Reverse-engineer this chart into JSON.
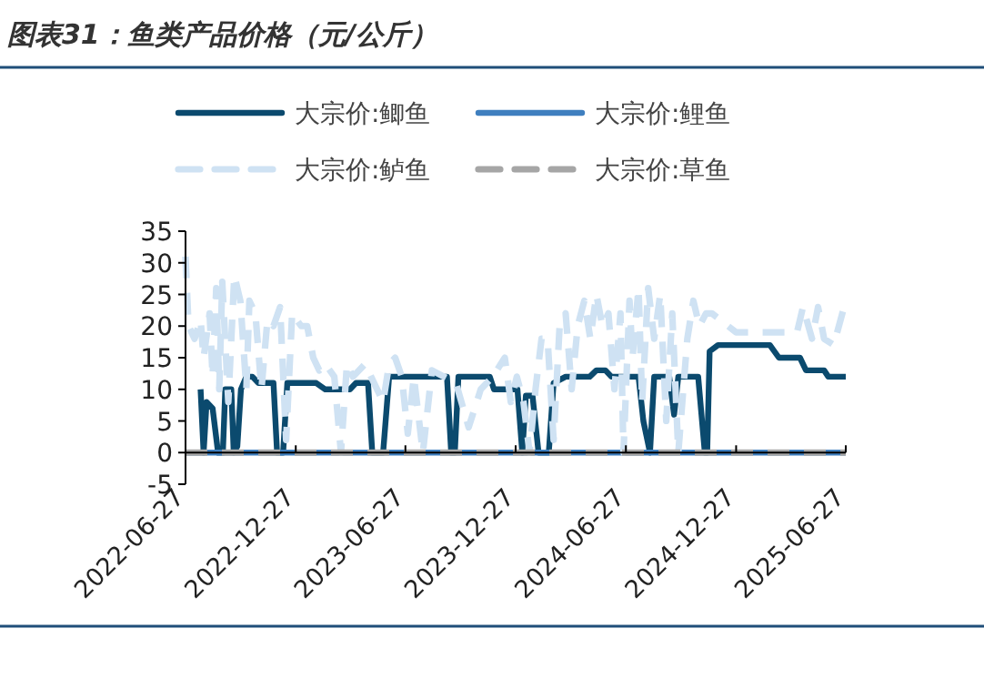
{
  "chart_data": {
    "type": "line",
    "title": "图表31：鱼类产品价格（元/公斤）",
    "xlim": [
      "2022-06-27",
      "2025-06-27"
    ],
    "xticks": [
      "2022-06-27",
      "2022-12-27",
      "2023-06-27",
      "2023-12-27",
      "2024-06-27",
      "2024-12-27",
      "2025-06-27"
    ],
    "ylim": [
      -5,
      35
    ],
    "yticks": [
      -5,
      0,
      5,
      10,
      15,
      20,
      25,
      30,
      35
    ],
    "grid": false,
    "legend": "top",
    "marker": "none",
    "series": [
      {
        "name": "大宗价:鲫鱼",
        "color": "#0b4a6e",
        "line_style": "solid",
        "x": [
          "2022-07-22",
          "2022-07-27",
          "2022-08-01",
          "2022-08-11",
          "2022-08-20",
          "2022-08-28",
          "2022-09-01",
          "2022-09-11",
          "2022-09-15",
          "2022-09-21",
          "2022-09-27",
          "2022-10-06",
          "2022-10-16",
          "2022-10-26",
          "2022-11-20",
          "2022-11-26",
          "2022-12-06",
          "2022-12-13",
          "2023-01-30",
          "2023-02-14",
          "2023-03-27",
          "2023-04-06",
          "2023-04-26",
          "2023-05-03",
          "2023-05-21",
          "2023-05-31",
          "2023-09-04",
          "2023-09-11",
          "2023-09-17",
          "2023-09-23",
          "2023-11-14",
          "2023-11-21",
          "2023-12-30",
          "2024-01-07",
          "2024-01-13",
          "2024-01-24",
          "2024-02-03",
          "2024-02-20",
          "2024-02-28",
          "2024-03-19",
          "2024-04-28",
          "2024-05-09",
          "2024-05-24",
          "2024-06-03",
          "2024-07-18",
          "2024-07-26",
          "2024-08-06",
          "2024-08-13",
          "2024-09-07",
          "2024-09-15",
          "2024-09-22",
          "2024-10-25",
          "2024-11-05",
          "2024-11-09",
          "2024-11-13",
          "2024-11-27",
          "2025-02-21",
          "2025-03-08",
          "2025-04-12",
          "2025-04-22",
          "2025-05-22",
          "2025-05-29",
          "2025-06-27"
        ],
        "values": [
          10,
          0,
          8,
          7,
          0,
          0,
          10,
          10,
          0,
          1,
          10,
          12,
          12,
          11,
          11,
          0,
          0,
          11,
          11,
          10,
          10,
          11,
          11,
          0,
          0,
          12,
          12,
          0,
          0,
          12,
          12,
          10,
          10,
          0,
          9,
          9,
          0,
          0,
          11,
          12,
          12,
          13,
          13,
          12,
          12,
          5,
          0,
          12,
          12,
          6,
          12,
          12,
          0,
          0,
          16,
          17,
          17,
          15,
          15,
          13,
          13,
          12,
          12
        ]
      },
      {
        "name": "大宗价:鲤鱼",
        "color": "#3f7fbf",
        "line_style": "solid",
        "x": [
          "2022-06-27",
          "2025-06-27"
        ],
        "values": [
          0,
          0
        ]
      },
      {
        "name": "大宗价:鲈鱼",
        "color": "#cfe2f3",
        "line_style": "dashed",
        "x": [
          "2022-06-27",
          "2022-07-02",
          "2022-07-12",
          "2022-07-22",
          "2022-07-27",
          "2022-08-06",
          "2022-08-11",
          "2022-08-17",
          "2022-08-22",
          "2022-08-27",
          "2022-09-06",
          "2022-09-16",
          "2022-09-26",
          "2022-10-06",
          "2022-10-11",
          "2022-10-21",
          "2022-10-31",
          "2022-11-10",
          "2022-11-20",
          "2022-12-01",
          "2022-12-11",
          "2022-12-21",
          "2023-01-05",
          "2023-01-15",
          "2023-01-25",
          "2023-02-04",
          "2023-02-14",
          "2023-03-01",
          "2023-03-12",
          "2023-03-22",
          "2023-04-01",
          "2023-04-21",
          "2023-05-01",
          "2023-05-21",
          "2023-05-31",
          "2023-06-10",
          "2023-06-21",
          "2023-07-01",
          "2023-07-11",
          "2023-07-26",
          "2023-08-10",
          "2023-08-30",
          "2023-09-19",
          "2023-10-10",
          "2023-10-30",
          "2023-11-19",
          "2023-12-09",
          "2023-12-19",
          "2023-12-29",
          "2024-01-09",
          "2024-01-19",
          "2024-01-29",
          "2024-02-08",
          "2024-02-18",
          "2024-02-28",
          "2024-03-09",
          "2024-03-19",
          "2024-03-29",
          "2024-04-08",
          "2024-04-19",
          "2024-04-29",
          "2024-05-09",
          "2024-05-19",
          "2024-05-29",
          "2024-06-08",
          "2024-06-18",
          "2024-06-23",
          "2024-07-03",
          "2024-07-08",
          "2024-07-18",
          "2024-07-24",
          "2024-08-03",
          "2024-08-13",
          "2024-08-23",
          "2024-09-02",
          "2024-09-12",
          "2024-09-22",
          "2024-10-07",
          "2024-10-17",
          "2024-10-27",
          "2024-11-07",
          "2024-11-17",
          "2024-12-27",
          "2025-02-05",
          "2025-04-07",
          "2025-04-17",
          "2025-05-02",
          "2025-05-12",
          "2025-05-22",
          "2025-06-07",
          "2025-06-27"
        ],
        "values": [
          31,
          20,
          18,
          21,
          15,
          22,
          12,
          26,
          10,
          27,
          8,
          28,
          24,
          10,
          24,
          22,
          10,
          21,
          20,
          23,
          2,
          22,
          20,
          20,
          15,
          13,
          14,
          12,
          0,
          14,
          12,
          14,
          12,
          8,
          14,
          15,
          12,
          3,
          12,
          0,
          13,
          12,
          11,
          4,
          10,
          12,
          15,
          8,
          12,
          8,
          0,
          10,
          18,
          18,
          2,
          20,
          22,
          10,
          20,
          24,
          18,
          25,
          20,
          22,
          10,
          22,
          0,
          24,
          15,
          26,
          8,
          26,
          18,
          25,
          5,
          22,
          0,
          18,
          24,
          20,
          22,
          22,
          19,
          19,
          19,
          23,
          18,
          23,
          18,
          17,
          24
        ]
      },
      {
        "name": "大宗价:草鱼",
        "color": "#a6a6a6",
        "line_style": "dashed",
        "x": [
          "2022-06-27",
          "2025-06-27"
        ],
        "values": [
          0,
          0
        ]
      }
    ]
  }
}
